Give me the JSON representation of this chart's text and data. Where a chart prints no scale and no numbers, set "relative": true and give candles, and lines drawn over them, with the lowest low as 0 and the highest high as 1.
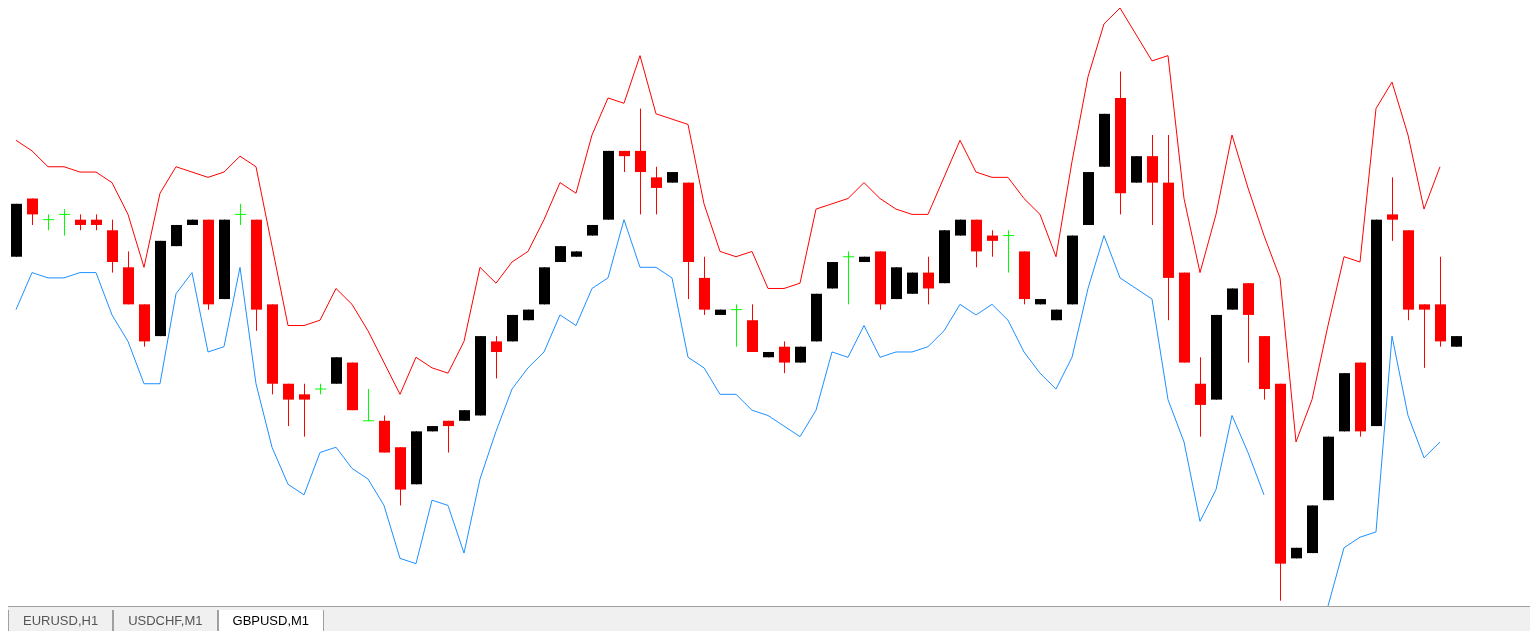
{
  "chart_data": {
    "type": "candlestick",
    "relative": true,
    "tick_labels": false,
    "categories": [
      null,
      null,
      null,
      null,
      null,
      null,
      null,
      null,
      null,
      null,
      null,
      null,
      null,
      null,
      null,
      null,
      null,
      null,
      null,
      null,
      null,
      null,
      null,
      null,
      null,
      null,
      null,
      null,
      null,
      null,
      null,
      null,
      null,
      null,
      null,
      null,
      null,
      null,
      null,
      null,
      null,
      null,
      null,
      null,
      null,
      null,
      null,
      null,
      null,
      null,
      null,
      null,
      null,
      null,
      null,
      null,
      null,
      null,
      null,
      null,
      null,
      null,
      null,
      null,
      null,
      null,
      null,
      null,
      null,
      null,
      null,
      null,
      null,
      null,
      null,
      null,
      null,
      null,
      null,
      null,
      null,
      null,
      null,
      null,
      null,
      null,
      null,
      null,
      null,
      null,
      null
    ],
    "ohlc": [
      [
        0.65,
        0.75,
        0.65,
        0.75
      ],
      [
        0.76,
        0.76,
        0.71,
        0.73
      ],
      [
        0.72,
        0.73,
        0.7,
        0.72
      ],
      [
        0.73,
        0.74,
        0.69,
        0.73
      ],
      [
        0.72,
        0.73,
        0.7,
        0.71
      ],
      [
        0.72,
        0.73,
        0.7,
        0.71
      ],
      [
        0.7,
        0.72,
        0.62,
        0.64
      ],
      [
        0.63,
        0.66,
        0.56,
        0.56
      ],
      [
        0.56,
        0.56,
        0.48,
        0.49
      ],
      [
        0.5,
        0.68,
        0.5,
        0.68
      ],
      [
        0.67,
        0.71,
        0.67,
        0.71
      ],
      [
        0.71,
        0.72,
        0.71,
        0.72
      ],
      [
        0.72,
        0.72,
        0.55,
        0.56
      ],
      [
        0.57,
        0.72,
        0.57,
        0.72
      ],
      [
        0.73,
        0.75,
        0.71,
        0.73
      ],
      [
        0.72,
        0.72,
        0.51,
        0.55
      ],
      [
        0.56,
        0.56,
        0.39,
        0.41
      ],
      [
        0.41,
        0.41,
        0.33,
        0.38
      ],
      [
        0.39,
        0.41,
        0.31,
        0.38
      ],
      [
        0.4,
        0.41,
        0.39,
        0.4
      ],
      [
        0.41,
        0.46,
        0.41,
        0.46
      ],
      [
        0.45,
        0.45,
        0.36,
        0.36
      ],
      [
        0.34,
        0.4,
        0.34,
        0.34
      ],
      [
        0.34,
        0.35,
        0.28,
        0.28
      ],
      [
        0.29,
        0.29,
        0.18,
        0.21
      ],
      [
        0.22,
        0.32,
        0.22,
        0.32
      ],
      [
        0.32,
        0.33,
        0.32,
        0.33
      ],
      [
        0.34,
        0.34,
        0.28,
        0.33
      ],
      [
        0.34,
        0.36,
        0.34,
        0.36
      ],
      [
        0.35,
        0.5,
        0.35,
        0.5
      ],
      [
        0.49,
        0.5,
        0.42,
        0.47
      ],
      [
        0.49,
        0.54,
        0.49,
        0.54
      ],
      [
        0.53,
        0.55,
        0.53,
        0.55
      ],
      [
        0.56,
        0.63,
        0.56,
        0.63
      ],
      [
        0.64,
        0.67,
        0.64,
        0.67
      ],
      [
        0.65,
        0.66,
        0.65,
        0.66
      ],
      [
        0.69,
        0.71,
        0.69,
        0.71
      ],
      [
        0.72,
        0.85,
        0.72,
        0.85
      ],
      [
        0.85,
        0.85,
        0.81,
        0.84
      ],
      [
        0.85,
        0.93,
        0.73,
        0.81
      ],
      [
        0.8,
        0.82,
        0.73,
        0.78
      ],
      [
        0.79,
        0.81,
        0.79,
        0.81
      ],
      [
        0.79,
        0.79,
        0.57,
        0.64
      ],
      [
        0.61,
        0.65,
        0.54,
        0.55
      ],
      [
        0.54,
        0.55,
        0.54,
        0.55
      ],
      [
        0.55,
        0.56,
        0.48,
        0.55
      ],
      [
        0.53,
        0.56,
        0.47,
        0.47
      ],
      [
        0.46,
        0.47,
        0.46,
        0.47
      ],
      [
        0.48,
        0.49,
        0.43,
        0.45
      ],
      [
        0.45,
        0.48,
        0.45,
        0.48
      ],
      [
        0.49,
        0.58,
        0.49,
        0.58
      ],
      [
        0.59,
        0.64,
        0.59,
        0.64
      ],
      [
        0.65,
        0.66,
        0.56,
        0.65
      ],
      [
        0.64,
        0.65,
        0.64,
        0.65
      ],
      [
        0.66,
        0.66,
        0.55,
        0.56
      ],
      [
        0.57,
        0.63,
        0.57,
        0.63
      ],
      [
        0.58,
        0.62,
        0.58,
        0.62
      ],
      [
        0.62,
        0.65,
        0.56,
        0.59
      ],
      [
        0.6,
        0.7,
        0.6,
        0.7
      ],
      [
        0.69,
        0.72,
        0.69,
        0.72
      ],
      [
        0.72,
        0.72,
        0.63,
        0.66
      ],
      [
        0.69,
        0.7,
        0.65,
        0.68
      ],
      [
        0.69,
        0.7,
        0.62,
        0.69
      ],
      [
        0.66,
        0.66,
        0.56,
        0.57
      ],
      [
        0.56,
        0.57,
        0.56,
        0.57
      ],
      [
        0.53,
        0.55,
        0.53,
        0.55
      ],
      [
        0.56,
        0.69,
        0.56,
        0.69
      ],
      [
        0.71,
        0.81,
        0.71,
        0.81
      ],
      [
        0.82,
        0.92,
        0.82,
        0.92
      ],
      [
        0.95,
        1,
        0.73,
        0.77
      ],
      [
        0.79,
        0.84,
        0.79,
        0.84
      ],
      [
        0.84,
        0.88,
        0.71,
        0.79
      ],
      [
        0.79,
        0.88,
        0.53,
        0.61
      ],
      [
        0.62,
        0.62,
        0.45,
        0.45
      ],
      [
        0.41,
        0.46,
        0.31,
        0.37
      ],
      [
        0.38,
        0.54,
        0.38,
        0.54
      ],
      [
        0.55,
        0.59,
        0.55,
        0.59
      ],
      [
        0.6,
        0.6,
        0.45,
        0.54
      ],
      [
        0.5,
        0.5,
        0.38,
        0.4
      ],
      [
        0.41,
        0.41,
        0,
        0.07
      ],
      [
        0.08,
        0.1,
        0.08,
        0.1
      ],
      [
        0.09,
        0.18,
        0.09,
        0.18
      ],
      [
        0.19,
        0.31,
        0.19,
        0.31
      ],
      [
        0.32,
        0.43,
        0.32,
        0.43
      ],
      [
        0.45,
        0.45,
        0.31,
        0.32
      ],
      [
        0.33,
        0.72,
        0.33,
        0.72
      ],
      [
        0.73,
        0.8,
        0.68,
        0.72
      ],
      [
        0.7,
        0.7,
        0.53,
        0.55
      ],
      [
        0.56,
        0.56,
        0.44,
        0.55
      ],
      [
        0.56,
        0.65,
        0.48,
        0.49
      ],
      [
        0.48,
        0.5,
        0.48,
        0.5
      ]
    ],
    "colors": [
      "#000000",
      "#ff0000",
      "#00ff00",
      "#00ff00",
      "#ff0000",
      "#ff0000",
      "#ff0000",
      "#ff0000",
      "#ff0000",
      "#000000",
      "#000000",
      "#000000",
      "#ff0000",
      "#000000",
      "#00ff00",
      "#ff0000",
      "#ff0000",
      "#ff0000",
      "#ff0000",
      "#00ff00",
      "#000000",
      "#ff0000",
      "#00ff00",
      "#ff0000",
      "#ff0000",
      "#000000",
      "#000000",
      "#ff0000",
      "#000000",
      "#000000",
      "#ff0000",
      "#000000",
      "#000000",
      "#000000",
      "#000000",
      "#000000",
      "#000000",
      "#000000",
      "#ff0000",
      "#ff0000",
      "#ff0000",
      "#000000",
      "#ff0000",
      "#ff0000",
      "#000000",
      "#00ff00",
      "#ff0000",
      "#000000",
      "#ff0000",
      "#000000",
      "#000000",
      "#000000",
      "#00ff00",
      "#000000",
      "#ff0000",
      "#000000",
      "#000000",
      "#ff0000",
      "#000000",
      "#000000",
      "#ff0000",
      "#ff0000",
      "#00ff00",
      "#ff0000",
      "#000000",
      "#000000",
      "#000000",
      "#000000",
      "#000000",
      "#ff0000",
      "#000000",
      "#ff0000",
      "#ff0000",
      "#ff0000",
      "#ff0000",
      "#000000",
      "#000000",
      "#ff0000",
      "#ff0000",
      "#ff0000",
      "#000000",
      "#000000",
      "#000000",
      "#000000",
      "#ff0000",
      "#000000",
      "#ff0000",
      "#ff0000",
      "#ff0000",
      "#ff0000",
      "#000000"
    ],
    "series": [
      {
        "type": "line",
        "color": "#ff0000",
        "values": [
          0.87,
          0.85,
          0.82,
          0.82,
          0.81,
          0.81,
          0.79,
          0.73,
          0.63,
          0.77,
          0.82,
          0.81,
          0.8,
          0.81,
          0.84,
          0.82,
          0.67,
          0.52,
          0.52,
          0.53,
          0.59,
          0.56,
          0.51,
          0.45,
          0.39,
          0.46,
          0.44,
          0.43,
          0.49,
          0.63,
          0.6,
          0.64,
          0.66,
          0.72,
          0.79,
          0.77,
          0.88,
          0.95,
          0.94,
          1.03,
          0.92,
          0.91,
          0.9,
          0.75,
          0.66,
          0.65,
          0.66,
          0.59,
          0.59,
          0.6,
          0.74,
          0.75,
          0.76,
          0.79,
          0.76,
          0.74,
          0.73,
          0.73,
          0.8,
          0.87,
          0.81,
          0.8,
          0.8,
          0.76,
          0.73,
          0.65,
          0.83,
          0.99,
          1.09,
          1.12,
          1.07,
          1.02,
          1.03,
          0.76,
          0.62,
          0.73,
          0.88,
          0.78,
          0.69,
          0.61,
          0.3,
          0.38,
          0.52,
          0.65,
          0.64,
          0.93,
          0.98,
          0.88,
          0.74,
          0.82,
          null
        ]
      },
      {
        "type": "line",
        "color": "#1e90ff",
        "values": [
          0.55,
          0.62,
          0.61,
          0.61,
          0.62,
          0.62,
          0.54,
          0.49,
          0.41,
          0.41,
          0.58,
          0.62,
          0.47,
          0.48,
          0.63,
          0.41,
          0.29,
          0.22,
          0.2,
          0.28,
          0.29,
          0.25,
          0.23,
          0.18,
          0.08,
          0.07,
          0.19,
          0.18,
          0.09,
          0.23,
          0.32,
          0.4,
          0.44,
          0.47,
          0.54,
          0.52,
          0.59,
          0.61,
          0.72,
          0.63,
          0.63,
          0.61,
          0.46,
          0.44,
          0.39,
          0.39,
          0.36,
          0.35,
          0.33,
          0.31,
          0.36,
          0.47,
          0.46,
          0.52,
          0.46,
          0.47,
          0.47,
          0.48,
          0.51,
          0.56,
          0.54,
          0.56,
          0.53,
          0.47,
          0.43,
          0.4,
          0.46,
          0.59,
          0.69,
          0.61,
          0.59,
          0.57,
          0.38,
          0.3,
          0.15,
          0.21,
          0.35,
          0.28,
          0.2,
          null,
          null,
          null,
          -0.01,
          0.1,
          0.12,
          0.13,
          0.5,
          0.35,
          0.27,
          0.3,
          null
        ]
      }
    ],
    "annotations": [
      "EURUSD,H1",
      "USDCHF,M1",
      "GBPUSD,M1"
    ]
  }
}
